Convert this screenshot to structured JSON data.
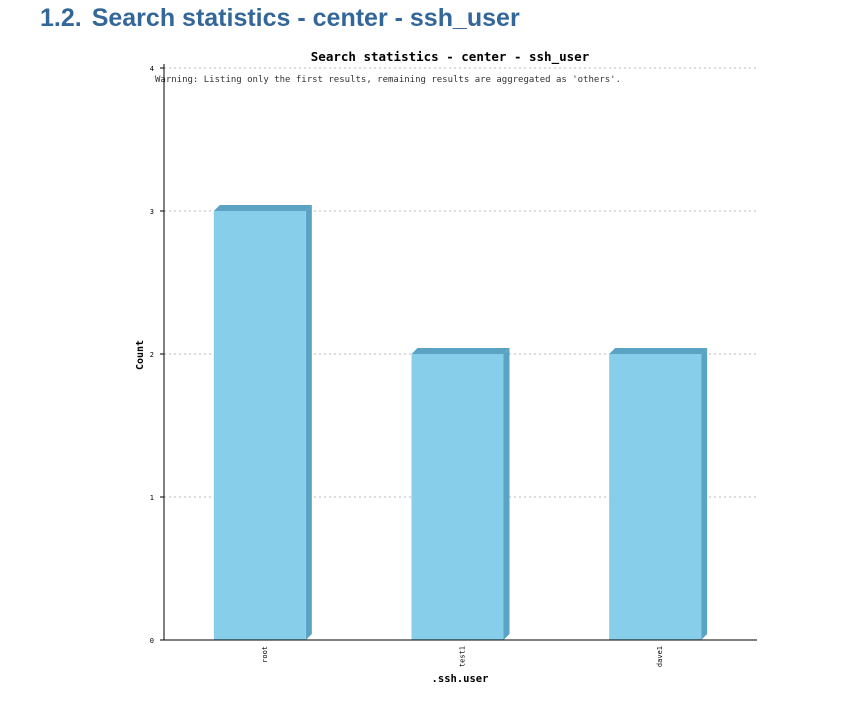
{
  "section": {
    "number": "1.2.",
    "title": "Search statistics - center - ssh_user"
  },
  "chart_data": {
    "type": "bar",
    "title": "Search statistics - center - ssh_user",
    "warning": "Warning: Listing only the first  results, remaining results are aggregated as 'others'.",
    "xlabel": ".ssh.user",
    "ylabel": "Count",
    "categories": [
      "root",
      "test1",
      "dave1"
    ],
    "values": [
      3,
      2,
      2
    ],
    "ylim": [
      0,
      4
    ],
    "yticks": [
      "0",
      "1",
      "2",
      "3",
      "4"
    ],
    "grid": true,
    "colors": {
      "bar": "#87ceeb",
      "bar_side": "#5ba3c2",
      "bar_top": "#5ba3c2",
      "grid": "#bbbbbb",
      "axis": "#000000"
    }
  }
}
